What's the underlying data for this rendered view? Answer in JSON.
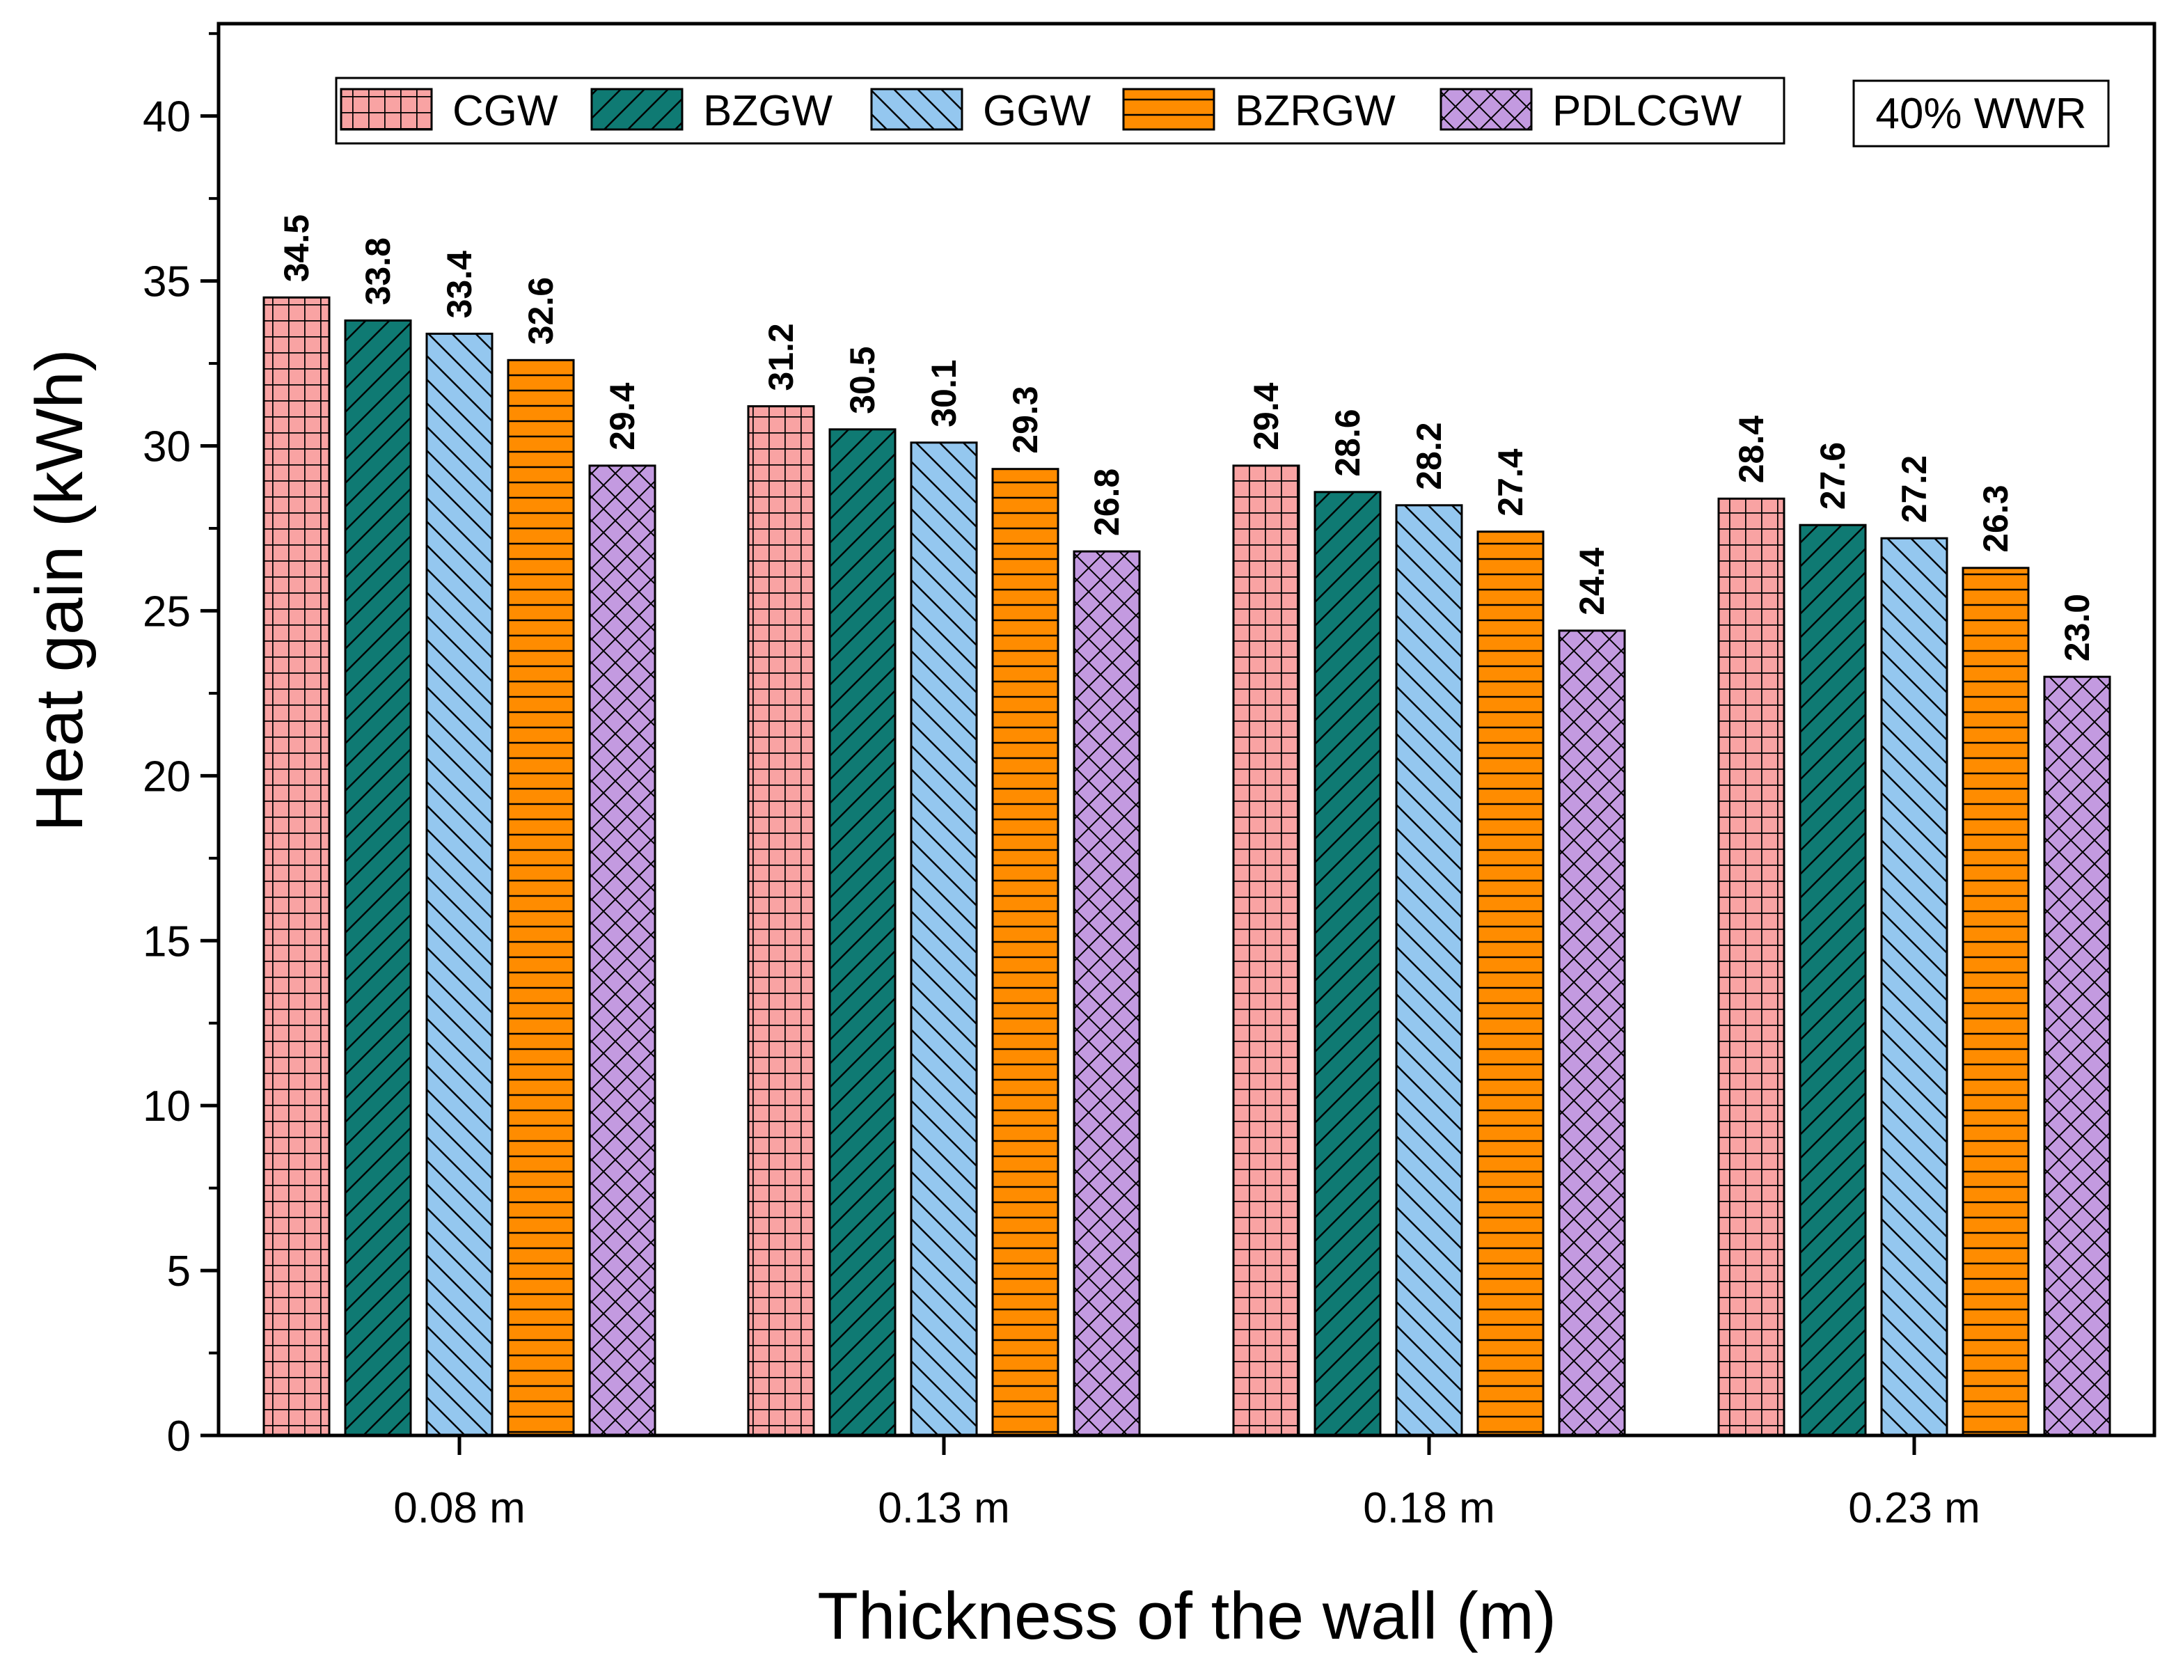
{
  "chart_data": {
    "type": "bar",
    "title": "",
    "xlabel": "Thickness of the wall (m)",
    "ylabel": "Heat gain (kWh)",
    "ylim": [
      0,
      42.8
    ],
    "yticks": [
      0,
      5,
      10,
      15,
      20,
      25,
      30,
      35,
      40
    ],
    "grid": false,
    "legend_position": "top",
    "annotation": "40% WWR",
    "categories": [
      "0.08 m",
      "0.13 m",
      "0.18 m",
      "0.23 m"
    ],
    "series": [
      {
        "name": "CGW",
        "pattern": "grid",
        "color": "#f9a3a3",
        "values": [
          34.5,
          31.2,
          29.4,
          28.4
        ],
        "labels": [
          "34.5",
          "31.2",
          "29.4",
          "28.4"
        ]
      },
      {
        "name": "BZGW",
        "pattern": "diag-right",
        "color": "#0f7a73",
        "values": [
          33.8,
          30.5,
          28.6,
          27.6
        ],
        "labels": [
          "33.8",
          "30.5",
          "28.6",
          "27.6"
        ]
      },
      {
        "name": "GGW",
        "pattern": "diag-left",
        "color": "#94c7ef",
        "values": [
          33.4,
          30.1,
          28.2,
          27.2
        ],
        "labels": [
          "33.4",
          "30.1",
          "28.2",
          "27.2"
        ]
      },
      {
        "name": "BZRGW",
        "pattern": "horizontal",
        "color": "#ff8c00",
        "values": [
          32.6,
          29.3,
          27.4,
          26.3
        ],
        "labels": [
          "32.6",
          "29.3",
          "27.4",
          "26.3"
        ]
      },
      {
        "name": "PDLCGW",
        "pattern": "cross",
        "color": "#c39ae0",
        "values": [
          29.4,
          26.8,
          24.4,
          23.0
        ],
        "labels": [
          "29.4",
          "26.8",
          "24.4",
          "23.0"
        ]
      }
    ]
  }
}
